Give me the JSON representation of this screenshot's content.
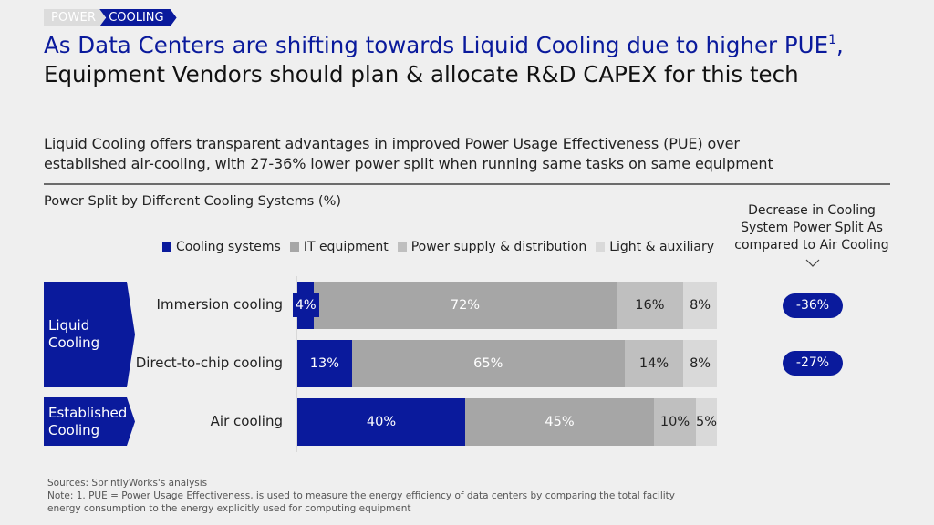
{
  "breadcrumb": [
    "POWER",
    "COOLING"
  ],
  "title": {
    "line1": "As Data Centers are shifting towards Liquid Cooling due to higher PUE",
    "line1_sup": "1",
    "line1_suffix": ",",
    "line2": "Equipment Vendors should plan & allocate R&D CAPEX for this tech"
  },
  "subtitle": {
    "line1": "Liquid Cooling offers transparent advantages in improved Power Usage Effectiveness (PUE) over",
    "line2": "established air-cooling, with 27-36% lower power split when running same tasks on same equipment"
  },
  "colors": {
    "brand": "#0a1a9c",
    "it": "#a6a6a6",
    "power": "#bfbfbf",
    "light": "#d9d9d9"
  },
  "groups": [
    {
      "label_line1": "Liquid",
      "label_line2": "Cooling"
    },
    {
      "label_line1": "Established",
      "label_line2": "Cooling"
    }
  ],
  "right_panel": {
    "heading_line1": "Decrease in Cooling",
    "heading_line2": "System Power Split As",
    "heading_line3": "compared to Air Cooling",
    "decreases": [
      "-36%",
      "-27%"
    ]
  },
  "chart_data": {
    "type": "bar",
    "orientation": "horizontal-stacked-100",
    "title": "Power Split by Different Cooling Systems (%)",
    "categories": [
      "Immersion cooling",
      "Direct-to-chip cooling",
      "Air cooling"
    ],
    "series": [
      {
        "name": "Cooling systems",
        "values": [
          4,
          13,
          40
        ],
        "labels": [
          "4%",
          "13%",
          "40%"
        ]
      },
      {
        "name": "IT equipment",
        "values": [
          72,
          65,
          45
        ],
        "labels": [
          "72%",
          "65%",
          "45%"
        ]
      },
      {
        "name": "Power supply & distribution",
        "values": [
          16,
          14,
          10
        ],
        "labels": [
          "16%",
          "14%",
          "10%"
        ]
      },
      {
        "name": "Light & auxiliary",
        "values": [
          8,
          8,
          5
        ],
        "labels": [
          "8%",
          "8%",
          "5%"
        ]
      }
    ],
    "xlabel": "",
    "ylabel": "",
    "xlim": [
      0,
      100
    ],
    "legend": "top",
    "grid": false
  },
  "footer": {
    "sources": "Sources: SprintlyWorks's analysis",
    "note_line1": "Note: 1. PUE = Power Usage Effectiveness, is used to measure the energy efficiency of data centers by comparing the total facility",
    "note_line2": "energy consumption to the energy explicitly used for computing equipment"
  }
}
